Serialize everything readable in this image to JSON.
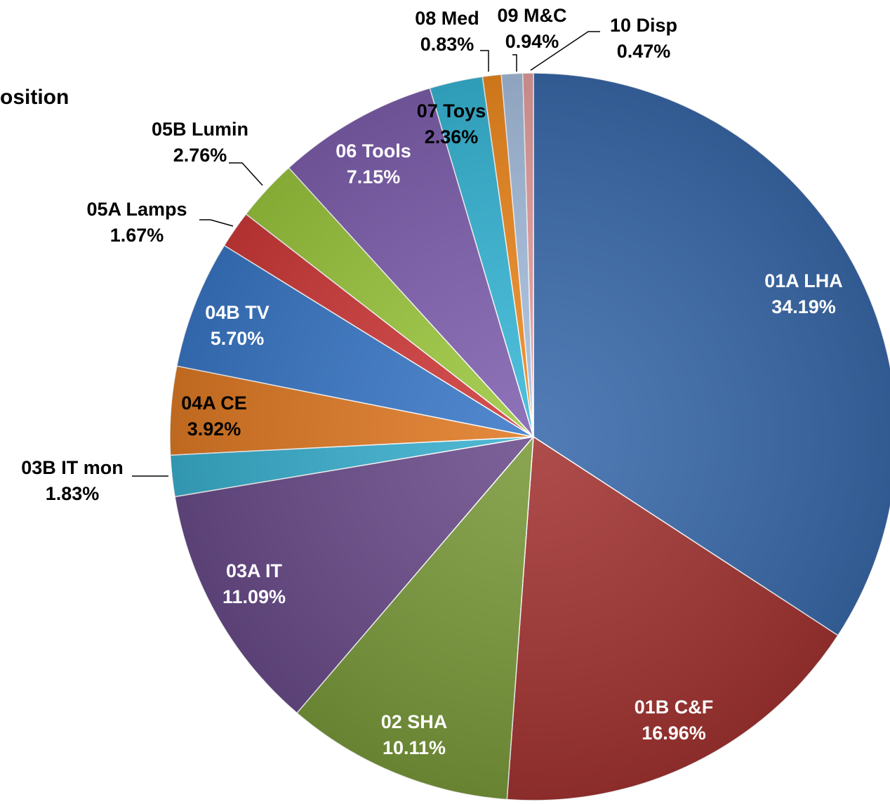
{
  "chart_data": {
    "type": "pie",
    "title": "osition",
    "categories": [
      "01A LHA",
      "01B C&F",
      "02 SHA",
      "03A IT",
      "03B IT mon",
      "04A CE",
      "04B TV",
      "05A Lamps",
      "05B Lumin",
      "06 Tools",
      "07 Toys",
      "08 Med",
      "09 M&C",
      "10 Disp"
    ],
    "values": [
      34.19,
      16.96,
      10.11,
      11.09,
      1.83,
      3.92,
      5.7,
      1.67,
      2.76,
      7.15,
      2.36,
      0.83,
      0.94,
      0.47
    ],
    "value_labels": [
      "34.19%",
      "16.96%",
      "10.11%",
      "11.09%",
      "1.83%",
      "3.92%",
      "5.70%",
      "1.67%",
      "2.76%",
      "7.15%",
      "2.36%",
      "0.83%",
      "0.94%",
      "0.47%"
    ],
    "colors": [
      "#3a6aab",
      "#a33432",
      "#7a9a3a",
      "#6a4c8a",
      "#3ab0cf",
      "#e07a24",
      "#3a78c8",
      "#d03a3a",
      "#9cc83e",
      "#8060b0",
      "#38b8d8",
      "#f08a20",
      "#a8c0e0",
      "#e8a0a0"
    ]
  }
}
